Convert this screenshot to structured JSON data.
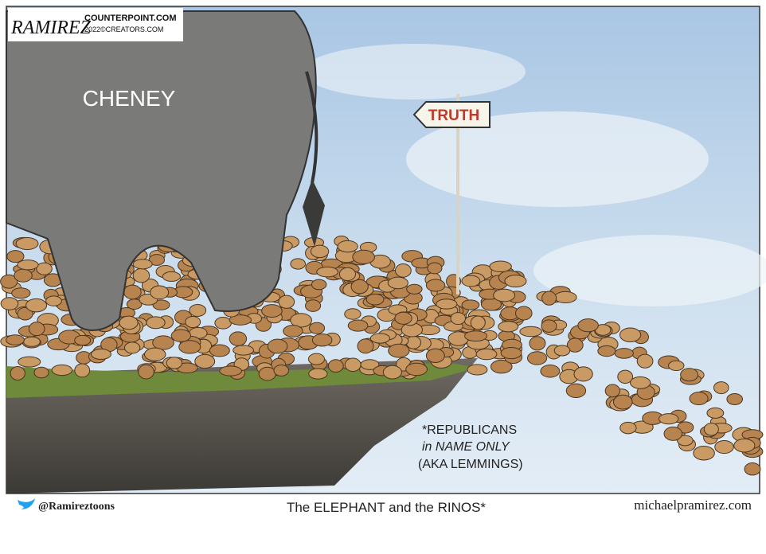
{
  "signature": {
    "artist": "RAMIREZ",
    "site": "COUNTERPOINT.COM",
    "copyright": "2022©CREATORS.COM"
  },
  "panel": {
    "elephant_label": "CHENEY",
    "sign": "TRUTH",
    "caption": [
      "*REPUBLICANS",
      "in NAME ONLY",
      "(AKA LEMMINGS)"
    ]
  },
  "footer": {
    "handle": "@Ramireztoons",
    "title": "The ELEPHANT and the RINOS*",
    "website": "michaelpramirez.com"
  }
}
